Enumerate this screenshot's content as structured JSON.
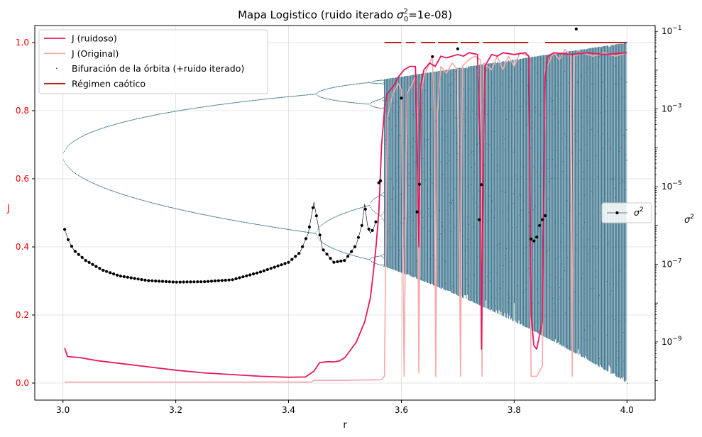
{
  "chart_data": {
    "type": "line",
    "title_main": "Mapa Logistico (ruido iterado ",
    "title_sigma": "σ",
    "title_sup": "2",
    "title_sub": "0",
    "title_tail": "=1e-08)",
    "xlabel": "r",
    "ylabel_left": "J",
    "ylabel_right_base": "σ",
    "ylabel_right_sup": "2",
    "xlim": [
      2.95,
      4.05
    ],
    "ylim_left": [
      -0.05,
      1.05
    ],
    "ylim_right_log10": [
      -10.5,
      -0.85
    ],
    "x_ticks": [
      {
        "v": 3.0,
        "label": "3.0"
      },
      {
        "v": 3.2,
        "label": "3.2"
      },
      {
        "v": 3.4,
        "label": "3.4"
      },
      {
        "v": 3.6,
        "label": "3.6"
      },
      {
        "v": 3.8,
        "label": "3.8"
      },
      {
        "v": 4.0,
        "label": "4.0"
      }
    ],
    "y_left_ticks": [
      {
        "v": 0.0,
        "label": "0.0"
      },
      {
        "v": 0.2,
        "label": "0.2"
      },
      {
        "v": 0.4,
        "label": "0.4"
      },
      {
        "v": 0.6,
        "label": "0.6"
      },
      {
        "v": 0.8,
        "label": "0.8"
      },
      {
        "v": 1.0,
        "label": "1.0"
      }
    ],
    "y_right_ticks": [
      {
        "v": -9,
        "base": "10",
        "exp": "−9"
      },
      {
        "v": -7,
        "base": "10",
        "exp": "−7"
      },
      {
        "v": -5,
        "base": "10",
        "exp": "−5"
      },
      {
        "v": -3,
        "base": "10",
        "exp": "−3"
      },
      {
        "v": -1,
        "base": "10",
        "exp": "−1"
      }
    ],
    "grid": true,
    "colors": {
      "left_axis": "#ff0000",
      "j_noisy": "#e8175d",
      "j_original": "#f7a8a8",
      "bifurcation": "#1f5f7a",
      "chaotic": "#b22222",
      "sigma": "#000000",
      "grid": "#dcdcdc"
    },
    "legend_left": {
      "placement": "top-left",
      "entries": [
        {
          "key": "j_noisy",
          "label": "J (ruidoso)"
        },
        {
          "key": "j_original",
          "label": "J (Original)"
        },
        {
          "key": "bifurcation",
          "label": "Bifuración de la órbita (+ruido iterado)"
        },
        {
          "key": "chaotic",
          "label": "Régimen caótico"
        }
      ]
    },
    "legend_right": {
      "placement": "center-right",
      "label_base": "σ",
      "label_sup": "2"
    },
    "series": [
      {
        "name": "J (ruidoso)",
        "key": "j_noisy",
        "axis": "left",
        "points": [
          [
            3.003,
            0.103
          ],
          [
            3.008,
            0.078
          ],
          [
            3.03,
            0.075
          ],
          [
            3.06,
            0.066
          ],
          [
            3.1,
            0.058
          ],
          [
            3.15,
            0.048
          ],
          [
            3.2,
            0.038
          ],
          [
            3.25,
            0.03
          ],
          [
            3.3,
            0.025
          ],
          [
            3.35,
            0.02
          ],
          [
            3.4,
            0.017
          ],
          [
            3.43,
            0.018
          ],
          [
            3.445,
            0.035
          ],
          [
            3.455,
            0.06
          ],
          [
            3.47,
            0.063
          ],
          [
            3.48,
            0.062
          ],
          [
            3.49,
            0.065
          ],
          [
            3.5,
            0.075
          ],
          [
            3.52,
            0.12
          ],
          [
            3.535,
            0.18
          ],
          [
            3.545,
            0.25
          ],
          [
            3.55,
            0.32
          ],
          [
            3.555,
            0.4
          ],
          [
            3.56,
            0.5
          ],
          [
            3.565,
            0.7
          ],
          [
            3.57,
            0.8
          ],
          [
            3.575,
            0.85
          ],
          [
            3.585,
            0.87
          ],
          [
            3.595,
            0.9
          ],
          [
            3.605,
            0.92
          ],
          [
            3.615,
            0.93
          ],
          [
            3.625,
            0.93
          ],
          [
            3.628,
            0.7
          ],
          [
            3.631,
            0.4
          ],
          [
            3.634,
            0.87
          ],
          [
            3.64,
            0.92
          ],
          [
            3.65,
            0.94
          ],
          [
            3.66,
            0.93
          ],
          [
            3.67,
            0.96
          ],
          [
            3.68,
            0.955
          ],
          [
            3.69,
            0.96
          ],
          [
            3.7,
            0.965
          ],
          [
            3.71,
            0.96
          ],
          [
            3.72,
            0.97
          ],
          [
            3.735,
            0.965
          ],
          [
            3.74,
            0.7
          ],
          [
            3.742,
            0.1
          ],
          [
            3.745,
            0.6
          ],
          [
            3.748,
            0.93
          ],
          [
            3.76,
            0.965
          ],
          [
            3.77,
            0.96
          ],
          [
            3.78,
            0.97
          ],
          [
            3.8,
            0.965
          ],
          [
            3.82,
            0.97
          ],
          [
            3.826,
            0.96
          ],
          [
            3.83,
            0.2
          ],
          [
            3.835,
            0.11
          ],
          [
            3.84,
            0.1
          ],
          [
            3.85,
            0.18
          ],
          [
            3.855,
            0.9
          ],
          [
            3.86,
            0.96
          ],
          [
            3.87,
            0.97
          ],
          [
            3.9,
            0.965
          ],
          [
            3.93,
            0.97
          ],
          [
            3.96,
            0.965
          ],
          [
            4.0,
            0.97
          ]
        ]
      },
      {
        "name": "J (Original)",
        "key": "j_original",
        "axis": "left",
        "points": [
          [
            3.003,
            0.003
          ],
          [
            3.2,
            0.003
          ],
          [
            3.44,
            0.003
          ],
          [
            3.445,
            0.008
          ],
          [
            3.5,
            0.008
          ],
          [
            3.565,
            0.01
          ],
          [
            3.57,
            0.02
          ],
          [
            3.575,
            0.78
          ],
          [
            3.585,
            0.85
          ],
          [
            3.595,
            0.88
          ],
          [
            3.6,
            0.86
          ],
          [
            3.603,
            0.3
          ],
          [
            3.605,
            0.02
          ],
          [
            3.607,
            0.4
          ],
          [
            3.61,
            0.85
          ],
          [
            3.62,
            0.88
          ],
          [
            3.625,
            0.9
          ],
          [
            3.628,
            0.8
          ],
          [
            3.631,
            0.03
          ],
          [
            3.634,
            0.85
          ],
          [
            3.64,
            0.9
          ],
          [
            3.65,
            0.94
          ],
          [
            3.655,
            0.96
          ],
          [
            3.658,
            0.8
          ],
          [
            3.661,
            0.02
          ],
          [
            3.664,
            0.8
          ],
          [
            3.67,
            0.93
          ],
          [
            3.68,
            0.91
          ],
          [
            3.69,
            0.94
          ],
          [
            3.7,
            0.92
          ],
          [
            3.705,
            0.02
          ],
          [
            3.708,
            0.93
          ],
          [
            3.72,
            0.95
          ],
          [
            3.73,
            0.96
          ],
          [
            3.74,
            0.95
          ],
          [
            3.743,
            0.02
          ],
          [
            3.746,
            0.94
          ],
          [
            3.76,
            0.92
          ],
          [
            3.77,
            0.96
          ],
          [
            3.78,
            0.92
          ],
          [
            3.79,
            0.96
          ],
          [
            3.8,
            0.93
          ],
          [
            3.81,
            0.97
          ],
          [
            3.826,
            0.96
          ],
          [
            3.83,
            0.02
          ],
          [
            3.84,
            0.02
          ],
          [
            3.85,
            0.05
          ],
          [
            3.855,
            0.92
          ],
          [
            3.87,
            0.97
          ],
          [
            3.88,
            0.95
          ],
          [
            3.89,
            0.98
          ],
          [
            3.9,
            0.96
          ],
          [
            3.903,
            0.02
          ],
          [
            3.906,
            0.96
          ],
          [
            3.92,
            0.97
          ],
          [
            3.94,
            0.96
          ],
          [
            3.96,
            0.97
          ],
          [
            3.98,
            0.96
          ],
          [
            4.0,
            0.97
          ]
        ]
      },
      {
        "name": "σ²",
        "key": "sigma",
        "axis": "right",
        "points": [
          [
            3.003,
            -6.1
          ],
          [
            3.01,
            -6.4
          ],
          [
            3.02,
            -6.65
          ],
          [
            3.04,
            -6.9
          ],
          [
            3.07,
            -7.15
          ],
          [
            3.1,
            -7.3
          ],
          [
            3.15,
            -7.42
          ],
          [
            3.2,
            -7.46
          ],
          [
            3.25,
            -7.45
          ],
          [
            3.3,
            -7.4
          ],
          [
            3.35,
            -7.2
          ],
          [
            3.38,
            -7.05
          ],
          [
            3.4,
            -6.95
          ],
          [
            3.42,
            -6.7
          ],
          [
            3.435,
            -6.2
          ],
          [
            3.445,
            -5.4
          ],
          [
            3.45,
            -5.8
          ],
          [
            3.46,
            -6.6
          ],
          [
            3.48,
            -6.95
          ],
          [
            3.5,
            -6.9
          ],
          [
            3.52,
            -6.5
          ],
          [
            3.53,
            -6.0
          ],
          [
            3.535,
            -5.45
          ],
          [
            3.54,
            -6.0
          ],
          [
            3.545,
            -6.2
          ],
          [
            3.55,
            -6.1
          ],
          [
            3.555,
            -5.9
          ],
          [
            3.56,
            -4.9
          ],
          [
            3.563,
            -4.85
          ],
          [
            3.6,
            -2.72
          ],
          [
            3.628,
            -5.65
          ],
          [
            3.632,
            -4.94
          ],
          [
            3.655,
            -1.65
          ],
          [
            3.7,
            -1.45
          ],
          [
            3.738,
            -5.85
          ],
          [
            3.742,
            -4.95
          ],
          [
            3.83,
            -6.35
          ],
          [
            3.835,
            -6.4
          ],
          [
            3.84,
            -6.3
          ],
          [
            3.845,
            -6.0
          ],
          [
            3.85,
            -5.85
          ],
          [
            3.855,
            -5.75
          ],
          [
            3.91,
            -0.94
          ]
        ]
      }
    ],
    "chaotic_segments": [
      [
        3.57,
        3.6
      ],
      [
        3.608,
        3.625
      ],
      [
        3.635,
        3.66
      ],
      [
        3.665,
        3.7
      ],
      [
        3.705,
        3.738
      ],
      [
        3.745,
        3.825
      ],
      [
        3.855,
        4.0
      ]
    ],
    "chaotic_level": 1.0
  }
}
